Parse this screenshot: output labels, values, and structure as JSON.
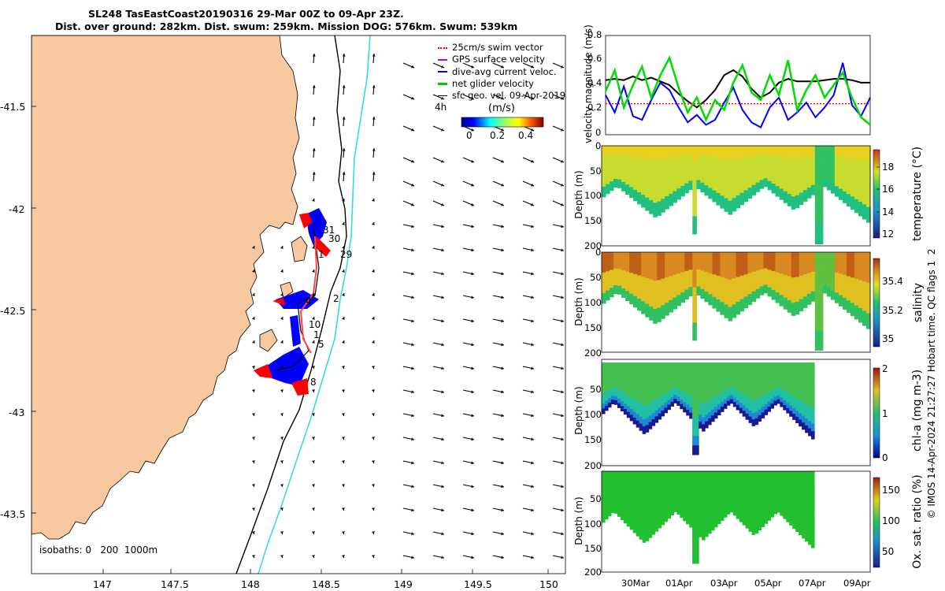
{
  "header": {
    "title_line1": "SL248 TasEastCoast20190316 29-Mar 00Z to 09-Apr 23Z.",
    "title_line2": "Dist. over ground: 282km. Dist. swum: 259km. Mission DOG: 576km. Swum: 539km"
  },
  "chart_data": [
    {
      "type": "map",
      "lon_range": [
        146.6,
        150.1
      ],
      "lat_range": [
        -43.8,
        -41.2
      ],
      "xticks": [
        "147",
        "147.5",
        "148",
        "148.5",
        "149",
        "149.5",
        "150"
      ],
      "yticks": [
        "-41.5",
        "-42",
        "-42.5",
        "-43",
        "-43.5"
      ],
      "legend": [
        {
          "label": "25cm/s swim vector",
          "color": "#ff0000"
        },
        {
          "label": "GPS surface velocity",
          "color": "#cc00cc"
        },
        {
          "label": "dive-avg current veloc.",
          "color": "#0000ff"
        },
        {
          "label": "net glider velocity",
          "color": "#00cc00"
        },
        {
          "label": "sfc geo. vel. 09-Apr-2019",
          "color": "#000000"
        }
      ],
      "glider_label": "4h",
      "colorbar": {
        "label": "(m/s)",
        "ticks": [
          "0",
          "0.2",
          "0.4"
        ]
      },
      "isobath_note": "isobaths: 0   200  1000m",
      "day_markers": [
        "31",
        "30",
        "1",
        "29",
        "4",
        "2",
        "10",
        "1",
        "5",
        "8"
      ]
    },
    {
      "type": "line",
      "ylabel": "velocity magnitude (m/s)",
      "ylim": [
        0,
        0.8
      ],
      "yticks": [
        "0",
        "0.2",
        "0.4",
        "0.6",
        "0.8"
      ],
      "series": [
        {
          "name": "sfc geo. vel.",
          "color": "#000000",
          "values": [
            0.44,
            0.45,
            0.44,
            0.47,
            0.44,
            0.46,
            0.43,
            0.4,
            0.33,
            0.27,
            0.22,
            0.28,
            0.36,
            0.48,
            0.52,
            0.47,
            0.37,
            0.3,
            0.34,
            0.42,
            0.45,
            0.43,
            0.43,
            0.43,
            0.44,
            0.45,
            0.45,
            0.44,
            0.42,
            0.42
          ]
        },
        {
          "name": "swim vector",
          "color": "#ff0000",
          "values": [
            0.25,
            0.25,
            0.25,
            0.25,
            0.25,
            0.25,
            0.25,
            0.25,
            0.25,
            0.25,
            0.25,
            0.25,
            0.25,
            0.25,
            0.25,
            0.25,
            0.25,
            0.25,
            0.25,
            0.25,
            0.25,
            0.25,
            0.25,
            0.25,
            0.25,
            0.25,
            0.25,
            0.25,
            0.25,
            0.25
          ]
        },
        {
          "name": "dive-avg current",
          "color": "#0000ff",
          "values": [
            0.32,
            0.18,
            0.39,
            0.15,
            0.12,
            0.28,
            0.42,
            0.36,
            0.22,
            0.1,
            0.16,
            0.08,
            0.12,
            0.26,
            0.38,
            0.2,
            0.1,
            0.06,
            0.22,
            0.3,
            0.12,
            0.18,
            0.26,
            0.14,
            0.22,
            0.32,
            0.58,
            0.24,
            0.15,
            0.3
          ]
        },
        {
          "name": "net glider velocity",
          "color": "#00dd00",
          "values": [
            0.35,
            0.52,
            0.22,
            0.4,
            0.55,
            0.3,
            0.48,
            0.62,
            0.38,
            0.18,
            0.3,
            0.12,
            0.28,
            0.2,
            0.42,
            0.56,
            0.34,
            0.28,
            0.48,
            0.32,
            0.6,
            0.2,
            0.36,
            0.48,
            0.3,
            0.4,
            0.5,
            0.3,
            0.14,
            0.08
          ]
        }
      ]
    },
    {
      "type": "heatmap",
      "ylabel": "Depth (m)",
      "yticks": [
        "0",
        "50",
        "100",
        "150",
        "200"
      ],
      "colorbar_label": "temperature (°C)",
      "colorbar_ticks": [
        "12",
        "14",
        "16",
        "18"
      ],
      "values_range": [
        11,
        19.5
      ]
    },
    {
      "type": "heatmap",
      "ylabel": "Depth (m)",
      "yticks": [
        "0",
        "50",
        "100",
        "150",
        "200"
      ],
      "colorbar_label": "salinity",
      "colorbar_ticks": [
        "35",
        "35.2",
        "35.4"
      ],
      "values_range": [
        34.9,
        35.55
      ]
    },
    {
      "type": "heatmap",
      "ylabel": "Depth (m)",
      "yticks": [
        "50",
        "100",
        "150",
        "200"
      ],
      "colorbar_label": "chl-a (mg m-3)",
      "colorbar_ticks": [
        "0",
        "1",
        "2"
      ],
      "values_range": [
        0,
        2
      ]
    },
    {
      "type": "heatmap",
      "ylabel": "Depth (m)",
      "yticks": [
        "50",
        "100",
        "150",
        "200"
      ],
      "colorbar_label": "Ox. sat. ratio (%)",
      "colorbar_ticks": [
        "50",
        "100",
        "150"
      ],
      "values_range": [
        30,
        170
      ],
      "xticks": [
        "30Mar",
        "01Apr",
        "03Apr",
        "05Apr",
        "07Apr",
        "09Apr"
      ]
    }
  ],
  "side_note": "© IMOS 14-Apr-2024 21:27:27 Hobart time. QC flags 1  2"
}
